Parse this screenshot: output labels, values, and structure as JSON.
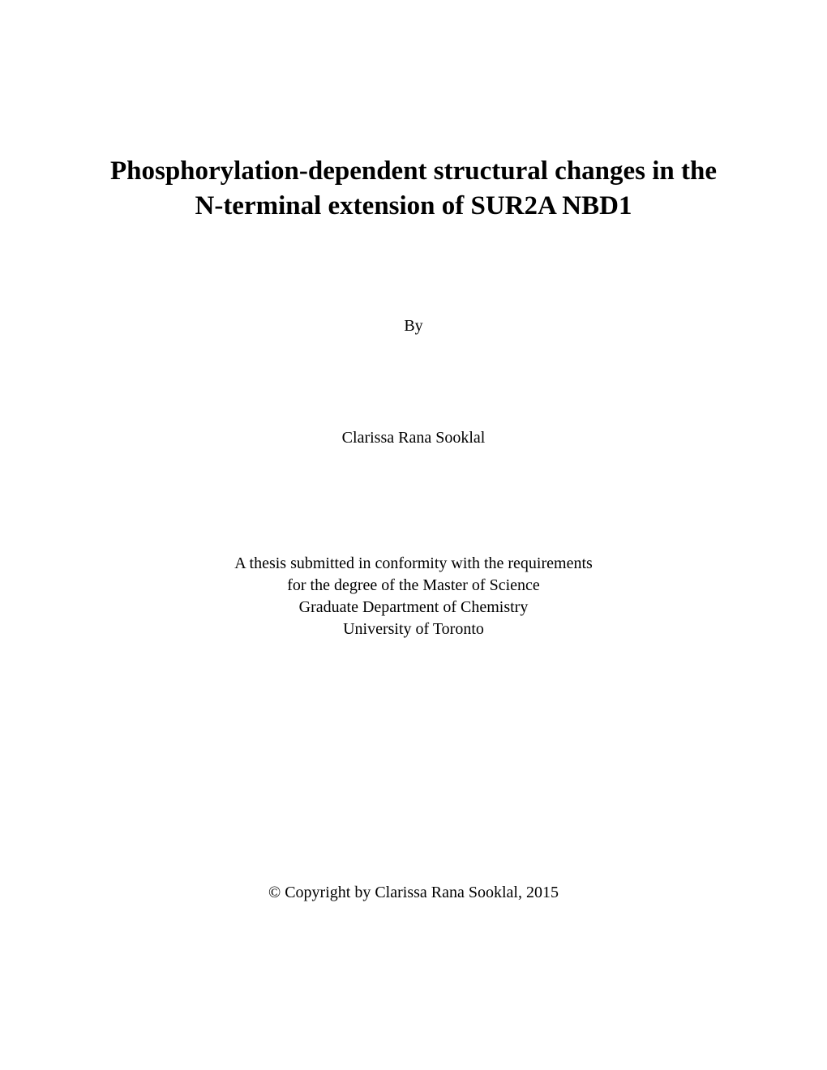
{
  "page": {
    "background_color": "#ffffff",
    "text_color": "#000000",
    "font_family": "Times New Roman"
  },
  "title": {
    "text": "Phosphorylation-dependent structural changes in the N-terminal extension of SUR2A NBD1",
    "fontsize": 33,
    "font_weight": "bold"
  },
  "by_label": {
    "text": "By",
    "fontsize": 20
  },
  "author": {
    "text": "Clarissa Rana Sooklal",
    "fontsize": 20
  },
  "submission": {
    "line1": "A thesis submitted in conformity with the requirements",
    "line2": "for the degree of the Master of Science",
    "line3": "Graduate Department of Chemistry",
    "line4": "University of Toronto",
    "fontsize": 20
  },
  "copyright": {
    "text": "© Copyright by Clarissa Rana Sooklal, 2015",
    "fontsize": 20
  }
}
